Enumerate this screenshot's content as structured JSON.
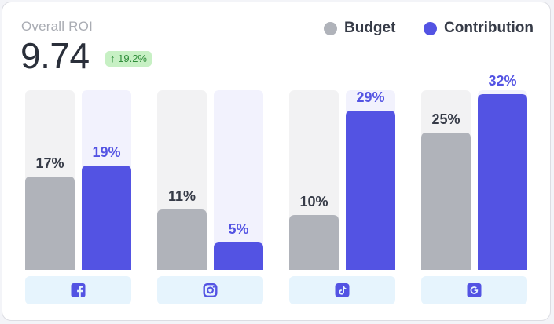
{
  "header": {
    "title": "Overall ROI",
    "value": "9.74",
    "change": "19.2%",
    "change_arrow": "↑"
  },
  "legend": {
    "budget_label": "Budget",
    "contribution_label": "Contribution"
  },
  "colors": {
    "budget": "#b0b3ba",
    "contribution": "#5353e3",
    "budget_track": "#f2f2f3",
    "contribution_track": "#f2f2fd",
    "budget_label": "#363b47",
    "contribution_label": "#5353e3",
    "platform_tile": "#e6f4fd",
    "platform_icon": "#5353e3",
    "badge_bg": "#c7f0c4",
    "badge_text": "#2f8d3a"
  },
  "chart_data": {
    "type": "bar",
    "categories": [
      "Facebook",
      "Instagram",
      "TikTok",
      "Google"
    ],
    "category_icons": [
      "facebook-icon",
      "instagram-icon",
      "tiktok-icon",
      "google-icon"
    ],
    "ylim": [
      0,
      40
    ],
    "series": [
      {
        "name": "Budget",
        "values": [
          17,
          11,
          10,
          25
        ],
        "labels": [
          "17%",
          "11%",
          "10%",
          "25%"
        ]
      },
      {
        "name": "Contribution",
        "values": [
          19,
          5,
          29,
          32
        ],
        "labels": [
          "19%",
          "5%",
          "29%",
          "32%"
        ]
      }
    ]
  }
}
